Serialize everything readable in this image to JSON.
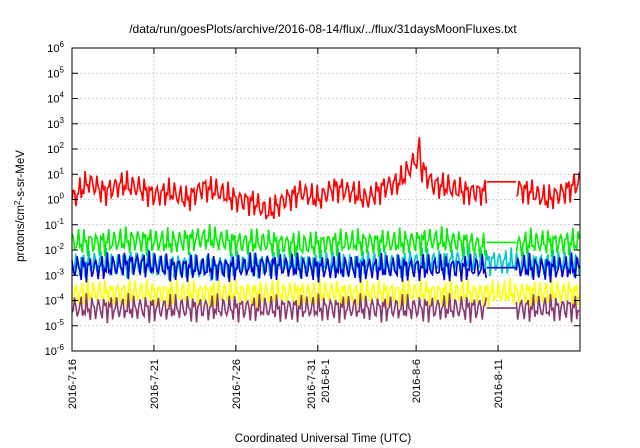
{
  "chart_data": {
    "type": "line",
    "title": "/data/run/goesPlots/archive/2016-08-14/flux/../flux/31daysMoonFluxes.txt",
    "xlabel": "Coordinated Universal Time (UTC)",
    "ylabel": "protons/cm²-s-sr-MeV",
    "yscale": "log",
    "ylim": [
      1e-06,
      1000000.0
    ],
    "xlim_days": [
      0,
      31
    ],
    "grid": true,
    "y_ticks": [
      {
        "exp": "-6",
        "value": 1e-06
      },
      {
        "exp": "-5",
        "value": 1e-05
      },
      {
        "exp": "-4",
        "value": 0.0001
      },
      {
        "exp": "-3",
        "value": 0.001
      },
      {
        "exp": "-2",
        "value": 0.01
      },
      {
        "exp": "-1",
        "value": 0.1
      },
      {
        "exp": "0",
        "value": 1
      },
      {
        "exp": "1",
        "value": 10
      },
      {
        "exp": "2",
        "value": 100
      },
      {
        "exp": "3",
        "value": 1000
      },
      {
        "exp": "4",
        "value": 10000
      },
      {
        "exp": "5",
        "value": 100000
      },
      {
        "exp": "6",
        "value": 1000000
      }
    ],
    "x_ticks": [
      {
        "label": "2016-7-16",
        "day": 0
      },
      {
        "label": "2016-7-21",
        "day": 5
      },
      {
        "label": "2016-7-26",
        "day": 10
      },
      {
        "label": "2016-7-31\n2016-8-1",
        "day": 15
      },
      {
        "label": "2016-8-6",
        "day": 21
      },
      {
        "label": "2016-8-11",
        "day": 26
      }
    ],
    "series": [
      {
        "color": "#ff0000",
        "day": [
          0,
          1,
          2,
          3,
          4,
          5,
          6,
          7,
          8,
          9,
          10,
          11,
          12,
          13,
          14,
          15,
          16,
          17,
          18,
          19,
          20,
          21,
          22,
          23,
          24,
          25,
          26,
          27,
          28,
          29,
          30,
          31
        ],
        "values": [
          1,
          5,
          2,
          4,
          3,
          1.5,
          2,
          1,
          3,
          2,
          1,
          0.8,
          0.3,
          1,
          2,
          1,
          3,
          2,
          1,
          3,
          5,
          40,
          4,
          3,
          2,
          2,
          2,
          3,
          2,
          1,
          2,
          5
        ],
        "spike": {
          "day": 21.2,
          "value": 300
        },
        "gap": [
          25.3,
          27.1
        ]
      },
      {
        "color": "#00ee00",
        "day": [
          0,
          2,
          4,
          6,
          8,
          10,
          12,
          14,
          16,
          18,
          20,
          22,
          24,
          26,
          28,
          30,
          31
        ],
        "values": [
          0.02,
          0.02,
          0.025,
          0.02,
          0.03,
          0.02,
          0.02,
          0.015,
          0.02,
          0.02,
          0.02,
          0.025,
          0.02,
          0.01,
          0.02,
          0.02,
          0.02
        ],
        "gap": [
          25.3,
          27.1
        ]
      },
      {
        "color": "#0000dd",
        "day": [
          0,
          2,
          4,
          6,
          8,
          10,
          12,
          14,
          16,
          18,
          20,
          22,
          24,
          26,
          28,
          30,
          31
        ],
        "values": [
          0.002,
          0.002,
          0.003,
          0.002,
          0.002,
          0.002,
          0.0025,
          0.002,
          0.002,
          0.002,
          0.002,
          0.002,
          0.002,
          0.002,
          0.002,
          0.002,
          0.002
        ],
        "gap": [
          25.3,
          27.1
        ]
      },
      {
        "color": "#00c8c8",
        "day": [
          0,
          4,
          8,
          12,
          16,
          20,
          24,
          28,
          31
        ],
        "values": [
          0.003,
          0.003,
          0.002,
          0.003,
          0.003,
          0.003,
          0.004,
          0.003,
          0.003
        ]
      },
      {
        "color": "#ffff00",
        "day": [
          0,
          4,
          8,
          12,
          16,
          20,
          24,
          28,
          31
        ],
        "values": [
          0.0002,
          0.0002,
          0.0002,
          0.0002,
          0.0002,
          0.0002,
          0.0002,
          0.0002,
          0.0002
        ]
      },
      {
        "color": "#8a3a6e",
        "day": [
          0,
          4,
          8,
          12,
          16,
          20,
          24,
          28,
          31
        ],
        "values": [
          5e-05,
          5e-05,
          5e-05,
          5e-05,
          5e-05,
          5e-05,
          5e-05,
          5e-05,
          5e-05
        ],
        "gap": [
          25.3,
          27.1
        ]
      }
    ]
  }
}
